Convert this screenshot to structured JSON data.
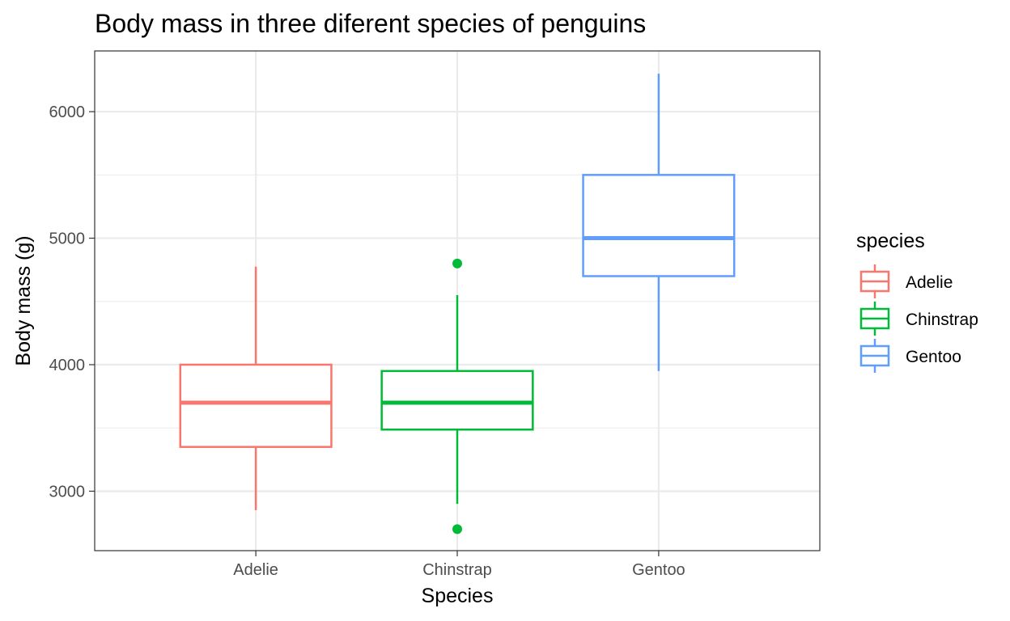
{
  "chart_data": {
    "type": "boxplot",
    "title": "Body mass in three diferent species of penguins",
    "xlabel": "Species",
    "ylabel": "Body mass (g)",
    "ylim": [
      2530,
      6480
    ],
    "y_ticks": [
      3000,
      4000,
      5000,
      6000
    ],
    "y_minor_ticks": [
      3500,
      4500,
      5500
    ],
    "categories": [
      "Adelie",
      "Chinstrap",
      "Gentoo"
    ],
    "grid": true,
    "legend": {
      "title": "species",
      "position": "right",
      "entries": [
        "Adelie",
        "Chinstrap",
        "Gentoo"
      ]
    },
    "series": [
      {
        "name": "Adelie",
        "color": "#F8766D",
        "whisker_low": 2850,
        "q1": 3350,
        "median": 3700,
        "q3": 4000,
        "whisker_high": 4775,
        "outliers": []
      },
      {
        "name": "Chinstrap",
        "color": "#00BA38",
        "whisker_low": 2900,
        "q1": 3487,
        "median": 3700,
        "q3": 3950,
        "whisker_high": 4550,
        "outliers": [
          4800,
          2700
        ]
      },
      {
        "name": "Gentoo",
        "color": "#619CFF",
        "whisker_low": 3950,
        "q1": 4700,
        "median": 5000,
        "q3": 5500,
        "whisker_high": 6300,
        "outliers": []
      }
    ]
  }
}
